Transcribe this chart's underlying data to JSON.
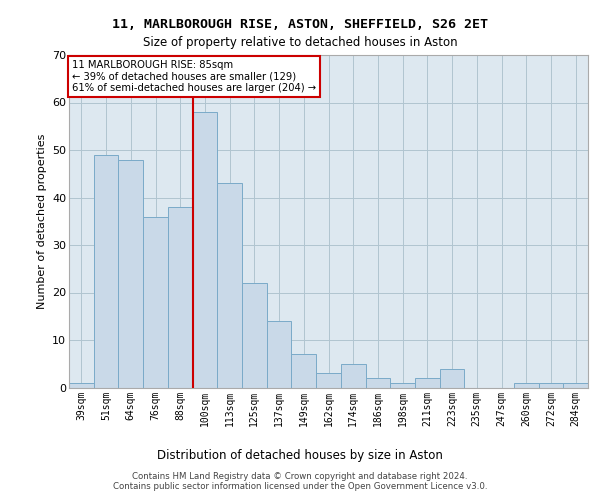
{
  "title_line1": "11, MARLBOROUGH RISE, ASTON, SHEFFIELD, S26 2ET",
  "title_line2": "Size of property relative to detached houses in Aston",
  "xlabel": "Distribution of detached houses by size in Aston",
  "ylabel": "Number of detached properties",
  "categories": [
    "39sqm",
    "51sqm",
    "64sqm",
    "76sqm",
    "88sqm",
    "100sqm",
    "113sqm",
    "125sqm",
    "137sqm",
    "149sqm",
    "162sqm",
    "174sqm",
    "186sqm",
    "198sqm",
    "211sqm",
    "223sqm",
    "235sqm",
    "247sqm",
    "260sqm",
    "272sqm",
    "284sqm"
  ],
  "values": [
    1,
    49,
    48,
    36,
    38,
    58,
    43,
    22,
    14,
    7,
    3,
    5,
    2,
    1,
    2,
    4,
    0,
    0,
    1,
    1,
    1
  ],
  "bar_color": "#c9d9e8",
  "bar_edge_color": "#7aaac8",
  "vline_x": 4.5,
  "vline_color": "#cc0000",
  "annotation_text": "11 MARLBOROUGH RISE: 85sqm\n← 39% of detached houses are smaller (129)\n61% of semi-detached houses are larger (204) →",
  "annotation_box_color": "#ffffff",
  "annotation_box_edge": "#cc0000",
  "ylim": [
    0,
    70
  ],
  "yticks": [
    0,
    10,
    20,
    30,
    40,
    50,
    60,
    70
  ],
  "grid_color": "#b0c4d0",
  "background_color": "#dde8f0",
  "footer_line1": "Contains HM Land Registry data © Crown copyright and database right 2024.",
  "footer_line2": "Contains public sector information licensed under the Open Government Licence v3.0."
}
